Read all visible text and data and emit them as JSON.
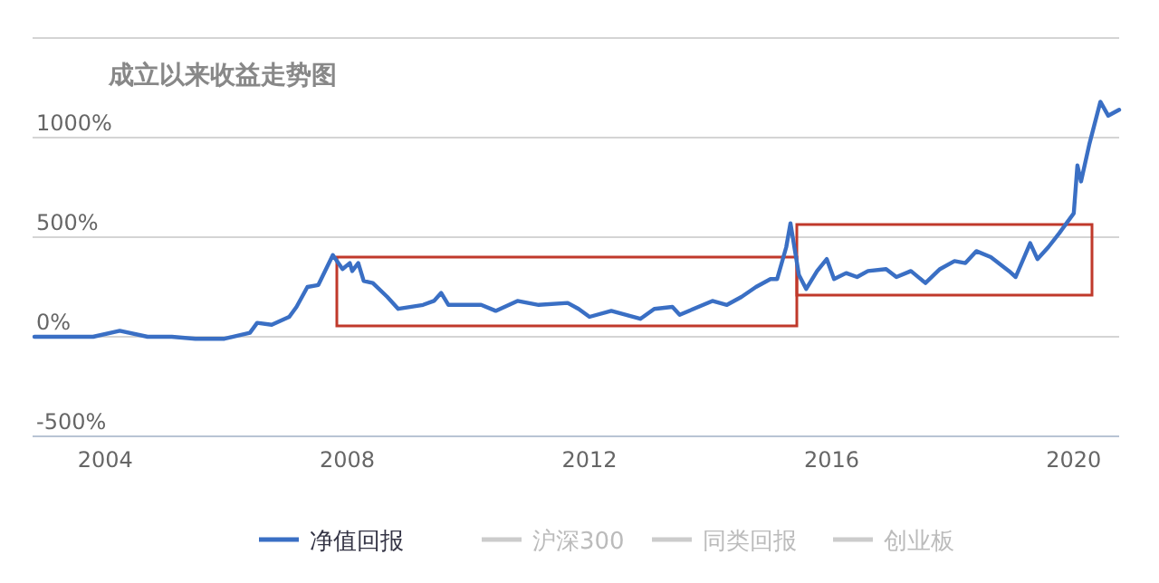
{
  "chart_data": {
    "type": "line",
    "title": "成立以来收益走势图",
    "xlim": [
      2002.8,
      2020.75
    ],
    "xticks": [
      2004,
      2008,
      2012,
      2016,
      2020
    ],
    "ylim": [
      -500,
      1500
    ],
    "yticks": [
      {
        "value": -500,
        "label": "-500%"
      },
      {
        "value": 0,
        "label": "0%"
      },
      {
        "value": 500,
        "label": "500%"
      },
      {
        "value": 1000,
        "label": "1000%"
      },
      {
        "value": 1500,
        "label": null
      }
    ],
    "grid": "y",
    "legend": "bottom",
    "marker": "none",
    "line_style": "solid",
    "series": [
      {
        "name": "净值回报",
        "color": "#3a6fc4",
        "x": [
          2002.83,
          2003.3,
          2003.8,
          2004.24,
          2004.7,
          2005.1,
          2005.49,
          2005.97,
          2006.39,
          2006.51,
          2006.75,
          2007.04,
          2007.16,
          2007.34,
          2007.52,
          2007.76,
          2007.92,
          2008.04,
          2008.08,
          2008.18,
          2008.27,
          2008.42,
          2008.66,
          2008.84,
          2009.25,
          2009.43,
          2009.55,
          2009.67,
          2010.21,
          2010.45,
          2010.81,
          2011.16,
          2011.64,
          2011.82,
          2012.0,
          2012.36,
          2012.84,
          2013.07,
          2013.37,
          2013.49,
          2014.03,
          2014.27,
          2014.51,
          2014.75,
          2014.99,
          2015.1,
          2015.25,
          2015.32,
          2015.46,
          2015.58,
          2015.76,
          2015.92,
          2016.04,
          2016.24,
          2016.42,
          2016.6,
          2016.9,
          2017.07,
          2017.31,
          2017.55,
          2017.79,
          2018.03,
          2018.21,
          2018.39,
          2018.63,
          2018.93,
          2019.04,
          2019.28,
          2019.4,
          2019.58,
          2019.76,
          2020.0,
          2020.06,
          2020.12,
          2020.26,
          2020.44,
          2020.57,
          2020.75
        ],
        "values": [
          0,
          0,
          0,
          30,
          0,
          0,
          -10,
          -10,
          20,
          70,
          60,
          100,
          150,
          250,
          260,
          410,
          340,
          370,
          330,
          370,
          280,
          270,
          200,
          140,
          160,
          180,
          220,
          160,
          160,
          130,
          180,
          160,
          170,
          140,
          100,
          130,
          90,
          140,
          150,
          110,
          180,
          160,
          200,
          250,
          290,
          290,
          450,
          570,
          310,
          240,
          330,
          390,
          290,
          320,
          300,
          330,
          340,
          300,
          330,
          270,
          340,
          380,
          370,
          430,
          400,
          330,
          300,
          470,
          390,
          450,
          520,
          620,
          860,
          780,
          970,
          1180,
          1110,
          1140
        ]
      },
      {
        "name": "沪深300",
        "color": "#cccccc"
      },
      {
        "name": "同类回报",
        "color": "#cccccc"
      },
      {
        "name": "创业板",
        "color": "#cccccc"
      }
    ]
  }
}
